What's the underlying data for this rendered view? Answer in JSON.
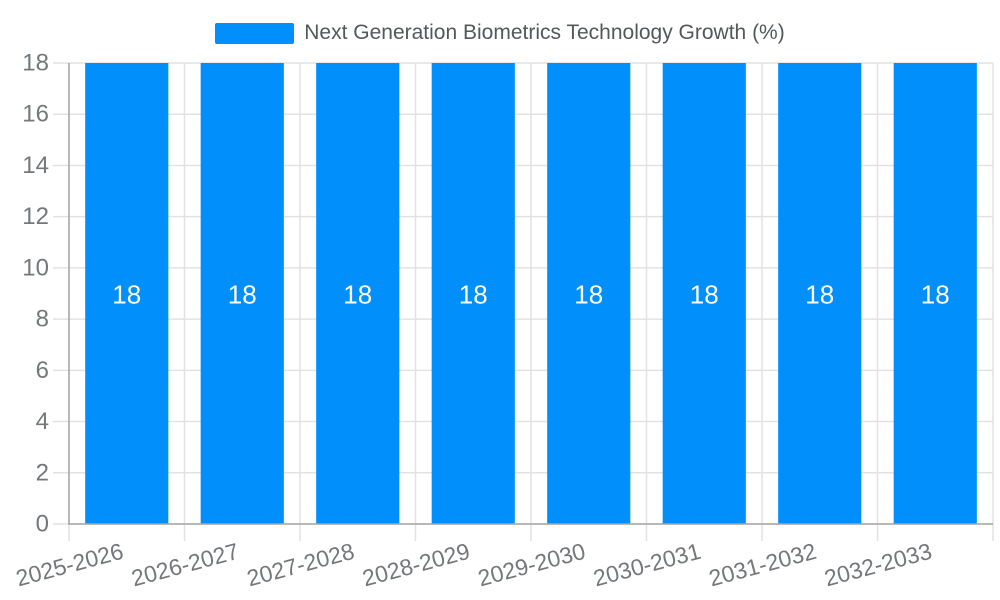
{
  "chart_data": {
    "type": "bar",
    "title": "Next Generation Biometrics Technology Growth (%)",
    "categories": [
      "2025-2026",
      "2026-2027",
      "2027-2028",
      "2028-2029",
      "2029-2030",
      "2030-2031",
      "2031-2032",
      "2032-2033"
    ],
    "series": [
      {
        "name": "Next Generation Biometrics Technology Growth (%)",
        "values": [
          18,
          18,
          18,
          18,
          18,
          18,
          18,
          18
        ]
      }
    ],
    "data_labels": [
      "18",
      "18",
      "18",
      "18",
      "18",
      "18",
      "18",
      "18"
    ],
    "yticks": [
      0,
      2,
      4,
      6,
      8,
      10,
      12,
      14,
      16,
      18
    ],
    "ylim": [
      0,
      18
    ],
    "xlabel": "",
    "ylabel": "",
    "grid": true,
    "legend_position": "top",
    "x_label_rotation": -15,
    "colors": {
      "bar": "#008FFB",
      "bar_label": "#ffffff",
      "axis_label": "#74787b",
      "legend_label": "#55585b",
      "gridline": "#e2e2e2",
      "axis_line": "#a6a6a6"
    }
  }
}
